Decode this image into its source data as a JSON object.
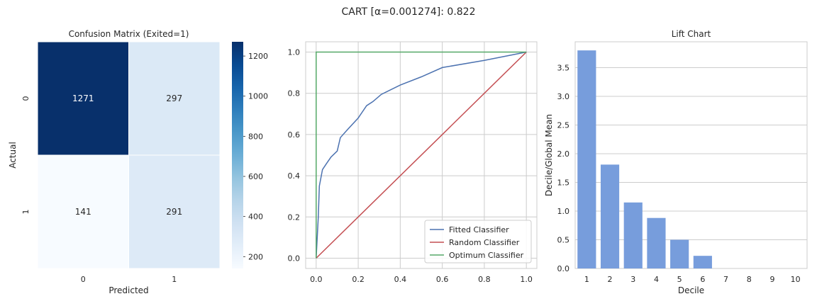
{
  "figure": {
    "title": "CART [α=0.001274]: 0.822"
  },
  "chart_data": [
    {
      "type": "heatmap",
      "title": "Confusion Matrix (Exited=1)",
      "xlabel": "Predicted",
      "ylabel": "Actual",
      "x_categories": [
        "0",
        "1"
      ],
      "y_categories": [
        "0",
        "1"
      ],
      "values": [
        [
          1271,
          297
        ],
        [
          141,
          291
        ]
      ],
      "colorbar": {
        "ticks": [
          "200",
          "400",
          "600",
          "800",
          "1000",
          "1200"
        ],
        "range": [
          141,
          1271
        ],
        "cmap": "Blues"
      }
    },
    {
      "type": "line",
      "title": "",
      "xlim": [
        -0.05,
        1.05
      ],
      "ylim": [
        -0.05,
        1.05
      ],
      "x_ticks": [
        "0.0",
        "0.2",
        "0.4",
        "0.6",
        "0.8",
        "1.0"
      ],
      "y_ticks": [
        "0.0",
        "0.2",
        "0.4",
        "0.6",
        "0.8",
        "1.0"
      ],
      "grid": true,
      "legend_position": "bottom-right",
      "series": [
        {
          "name": "Fitted Classifier",
          "color": "#4c72b0",
          "points": [
            [
              0.0,
              0.0
            ],
            [
              0.01,
              0.2
            ],
            [
              0.015,
              0.35
            ],
            [
              0.03,
              0.43
            ],
            [
              0.05,
              0.46
            ],
            [
              0.07,
              0.49
            ],
            [
              0.1,
              0.52
            ],
            [
              0.115,
              0.585
            ],
            [
              0.15,
              0.625
            ],
            [
              0.2,
              0.68
            ],
            [
              0.24,
              0.74
            ],
            [
              0.27,
              0.76
            ],
            [
              0.31,
              0.795
            ],
            [
              0.4,
              0.84
            ],
            [
              0.5,
              0.88
            ],
            [
              0.6,
              0.925
            ],
            [
              0.8,
              0.96
            ],
            [
              1.0,
              1.0
            ]
          ]
        },
        {
          "name": "Random Classifier",
          "color": "#c44e52",
          "points": [
            [
              0,
              0
            ],
            [
              1,
              1
            ]
          ]
        },
        {
          "name": "Optimum Classifier",
          "color": "#55a868",
          "points": [
            [
              0,
              0
            ],
            [
              0,
              1
            ],
            [
              1,
              1
            ]
          ]
        }
      ]
    },
    {
      "type": "bar",
      "title": "Lift Chart",
      "xlabel": "Decile",
      "ylabel": "Decile/Global Mean",
      "categories": [
        "1",
        "2",
        "3",
        "4",
        "5",
        "6",
        "7",
        "8",
        "9",
        "10"
      ],
      "values": [
        3.8,
        1.81,
        1.15,
        0.88,
        0.5,
        0.22,
        0,
        0,
        0,
        0
      ],
      "ylim": [
        0,
        3.95
      ],
      "y_ticks": [
        "0.0",
        "0.5",
        "1.0",
        "1.5",
        "2.0",
        "2.5",
        "3.0",
        "3.5"
      ],
      "grid": true,
      "color": "#779ddc"
    }
  ]
}
